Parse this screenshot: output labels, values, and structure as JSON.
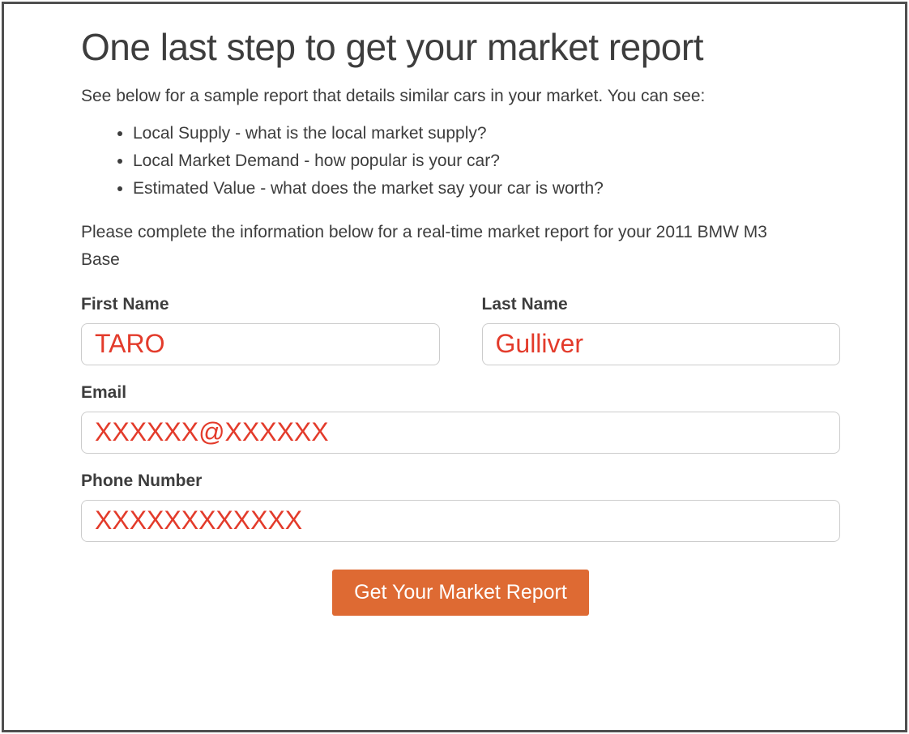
{
  "page": {
    "title": "One last step to get your market report",
    "intro": "See below for a sample report that details similar cars in your market. You can see:",
    "bullets": [
      "Local Supply - what is the local market supply?",
      "Local Market Demand - how popular is your car?",
      "Estimated Value - what does the market say your car is worth?"
    ],
    "instruction": "Please complete the information below for a real-time market report for your 2011 BMW M3 Base",
    "vehicle": "2011 BMW M3 Base"
  },
  "form": {
    "first_name": {
      "label": "First Name",
      "value": "TARO"
    },
    "last_name": {
      "label": "Last Name",
      "value": "Gulliver"
    },
    "email": {
      "label": "Email",
      "value": "XXXXXX@XXXXXX"
    },
    "phone": {
      "label": "Phone Number",
      "value": "XXXXXXXXXXXX"
    },
    "submit_label": "Get Your Market Report"
  },
  "colors": {
    "accent_orange": "#de6a33",
    "input_text_red": "#e33b2b",
    "body_text": "#3d3d3d",
    "input_border": "#cccccc",
    "page_border": "#4f4f4f"
  }
}
